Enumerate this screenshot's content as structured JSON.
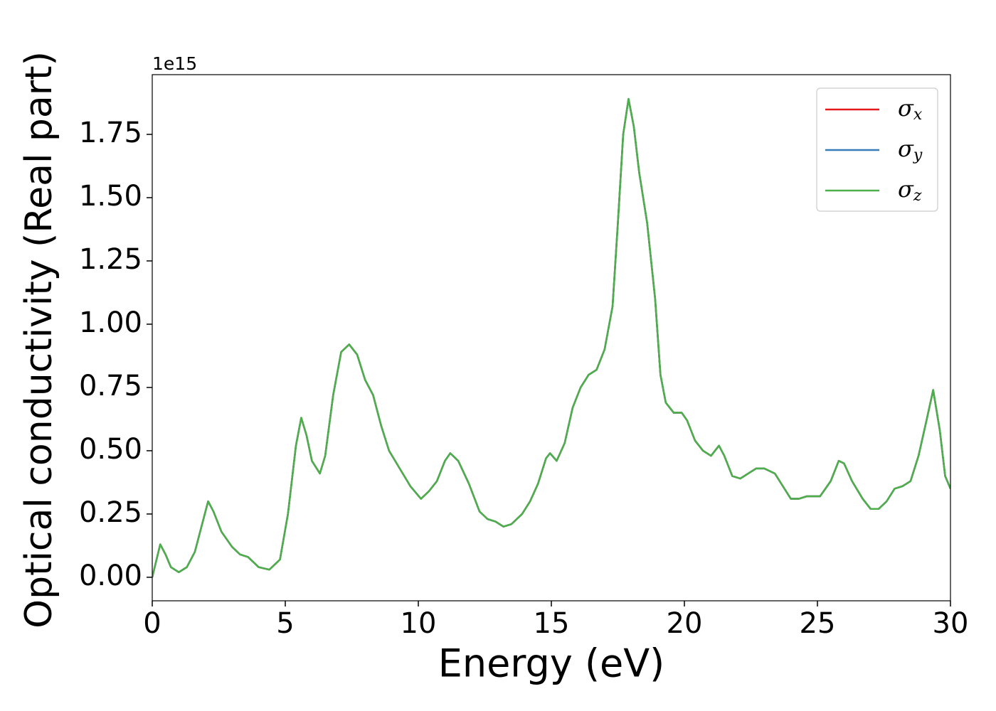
{
  "chart_data": {
    "type": "line",
    "xlabel": "Energy (eV)",
    "ylabel": "Optical conductivity (Real part)",
    "offset_label": "1e15",
    "x": [
      0,
      0.3,
      0.5,
      0.7,
      1.0,
      1.3,
      1.6,
      1.9,
      2.1,
      2.3,
      2.6,
      3.0,
      3.3,
      3.6,
      4.0,
      4.4,
      4.8,
      5.1,
      5.4,
      5.6,
      5.8,
      6.0,
      6.3,
      6.5,
      6.8,
      7.1,
      7.4,
      7.7,
      8.0,
      8.3,
      8.6,
      8.9,
      9.3,
      9.7,
      10.1,
      10.4,
      10.7,
      11.0,
      11.2,
      11.5,
      11.9,
      12.3,
      12.6,
      12.9,
      13.2,
      13.5,
      13.9,
      14.2,
      14.5,
      14.8,
      14.95,
      15.2,
      15.5,
      15.8,
      16.1,
      16.4,
      16.7,
      17.0,
      17.3,
      17.5,
      17.7,
      17.9,
      18.1,
      18.3,
      18.6,
      18.9,
      19.1,
      19.3,
      19.6,
      19.9,
      20.1,
      20.4,
      20.7,
      21.0,
      21.3,
      21.5,
      21.8,
      22.1,
      22.4,
      22.7,
      23.0,
      23.4,
      23.7,
      24.0,
      24.3,
      24.6,
      25.1,
      25.5,
      25.8,
      26.0,
      26.3,
      26.7,
      27.0,
      27.3,
      27.6,
      27.9,
      28.2,
      28.5,
      28.8,
      29.1,
      29.35,
      29.6,
      29.8,
      30.0
    ],
    "series": [
      {
        "name": "σx",
        "color": "#e41a1c",
        "values": [
          0,
          0.13,
          0.09,
          0.04,
          0.02,
          0.04,
          0.1,
          0.22,
          0.3,
          0.26,
          0.18,
          0.12,
          0.09,
          0.08,
          0.04,
          0.03,
          0.07,
          0.25,
          0.52,
          0.63,
          0.56,
          0.46,
          0.41,
          0.48,
          0.72,
          0.89,
          0.92,
          0.88,
          0.78,
          0.72,
          0.6,
          0.5,
          0.43,
          0.36,
          0.31,
          0.34,
          0.38,
          0.46,
          0.49,
          0.46,
          0.37,
          0.26,
          0.23,
          0.22,
          0.2,
          0.21,
          0.25,
          0.3,
          0.37,
          0.47,
          0.49,
          0.46,
          0.53,
          0.67,
          0.75,
          0.8,
          0.82,
          0.9,
          1.07,
          1.4,
          1.75,
          1.89,
          1.78,
          1.6,
          1.4,
          1.1,
          0.8,
          0.69,
          0.65,
          0.65,
          0.62,
          0.54,
          0.5,
          0.48,
          0.52,
          0.48,
          0.4,
          0.39,
          0.41,
          0.43,
          0.43,
          0.41,
          0.36,
          0.31,
          0.31,
          0.32,
          0.32,
          0.38,
          0.46,
          0.45,
          0.38,
          0.31,
          0.27,
          0.27,
          0.3,
          0.35,
          0.36,
          0.38,
          0.48,
          0.62,
          0.74,
          0.58,
          0.4,
          0.35
        ]
      },
      {
        "name": "σy",
        "color": "#377eb8",
        "values": [
          0,
          0.13,
          0.09,
          0.04,
          0.02,
          0.04,
          0.1,
          0.22,
          0.3,
          0.26,
          0.18,
          0.12,
          0.09,
          0.08,
          0.04,
          0.03,
          0.07,
          0.25,
          0.52,
          0.63,
          0.56,
          0.46,
          0.41,
          0.48,
          0.72,
          0.89,
          0.92,
          0.88,
          0.78,
          0.72,
          0.6,
          0.5,
          0.43,
          0.36,
          0.31,
          0.34,
          0.38,
          0.46,
          0.49,
          0.46,
          0.37,
          0.26,
          0.23,
          0.22,
          0.2,
          0.21,
          0.25,
          0.3,
          0.37,
          0.47,
          0.49,
          0.46,
          0.53,
          0.67,
          0.75,
          0.8,
          0.82,
          0.9,
          1.07,
          1.4,
          1.75,
          1.89,
          1.78,
          1.6,
          1.4,
          1.1,
          0.8,
          0.69,
          0.65,
          0.65,
          0.62,
          0.54,
          0.5,
          0.48,
          0.52,
          0.48,
          0.4,
          0.39,
          0.41,
          0.43,
          0.43,
          0.41,
          0.36,
          0.31,
          0.31,
          0.32,
          0.32,
          0.38,
          0.46,
          0.45,
          0.38,
          0.31,
          0.27,
          0.27,
          0.3,
          0.35,
          0.36,
          0.38,
          0.48,
          0.62,
          0.74,
          0.58,
          0.4,
          0.35
        ]
      },
      {
        "name": "σz",
        "color": "#4daf4a",
        "values": [
          0,
          0.13,
          0.09,
          0.04,
          0.02,
          0.04,
          0.1,
          0.22,
          0.3,
          0.26,
          0.18,
          0.12,
          0.09,
          0.08,
          0.04,
          0.03,
          0.07,
          0.25,
          0.52,
          0.63,
          0.56,
          0.46,
          0.41,
          0.48,
          0.72,
          0.89,
          0.92,
          0.88,
          0.78,
          0.72,
          0.6,
          0.5,
          0.43,
          0.36,
          0.31,
          0.34,
          0.38,
          0.46,
          0.49,
          0.46,
          0.37,
          0.26,
          0.23,
          0.22,
          0.2,
          0.21,
          0.25,
          0.3,
          0.37,
          0.47,
          0.49,
          0.46,
          0.53,
          0.67,
          0.75,
          0.8,
          0.82,
          0.9,
          1.07,
          1.4,
          1.75,
          1.89,
          1.78,
          1.6,
          1.4,
          1.1,
          0.8,
          0.69,
          0.65,
          0.65,
          0.62,
          0.54,
          0.5,
          0.48,
          0.52,
          0.48,
          0.4,
          0.39,
          0.41,
          0.43,
          0.43,
          0.41,
          0.36,
          0.31,
          0.31,
          0.32,
          0.32,
          0.38,
          0.46,
          0.45,
          0.38,
          0.31,
          0.27,
          0.27,
          0.3,
          0.35,
          0.36,
          0.38,
          0.48,
          0.62,
          0.74,
          0.58,
          0.4,
          0.35
        ]
      }
    ],
    "xlim": [
      0,
      30
    ],
    "xticks": [
      0,
      5,
      10,
      15,
      20,
      25,
      30
    ],
    "ylim": [
      -0.093,
      1.986
    ],
    "yticks": [
      {
        "value": 0,
        "label": "0.00"
      },
      0.25,
      {
        "value": 0.5,
        "label": "0.50"
      },
      {
        "value": 0.75,
        "label": "0.75"
      },
      {
        "value": 1,
        "label": "1.00"
      },
      1.25,
      {
        "value": 1.5,
        "label": "1.50"
      },
      1.75
    ],
    "legend": "upper right",
    "grid": false
  }
}
